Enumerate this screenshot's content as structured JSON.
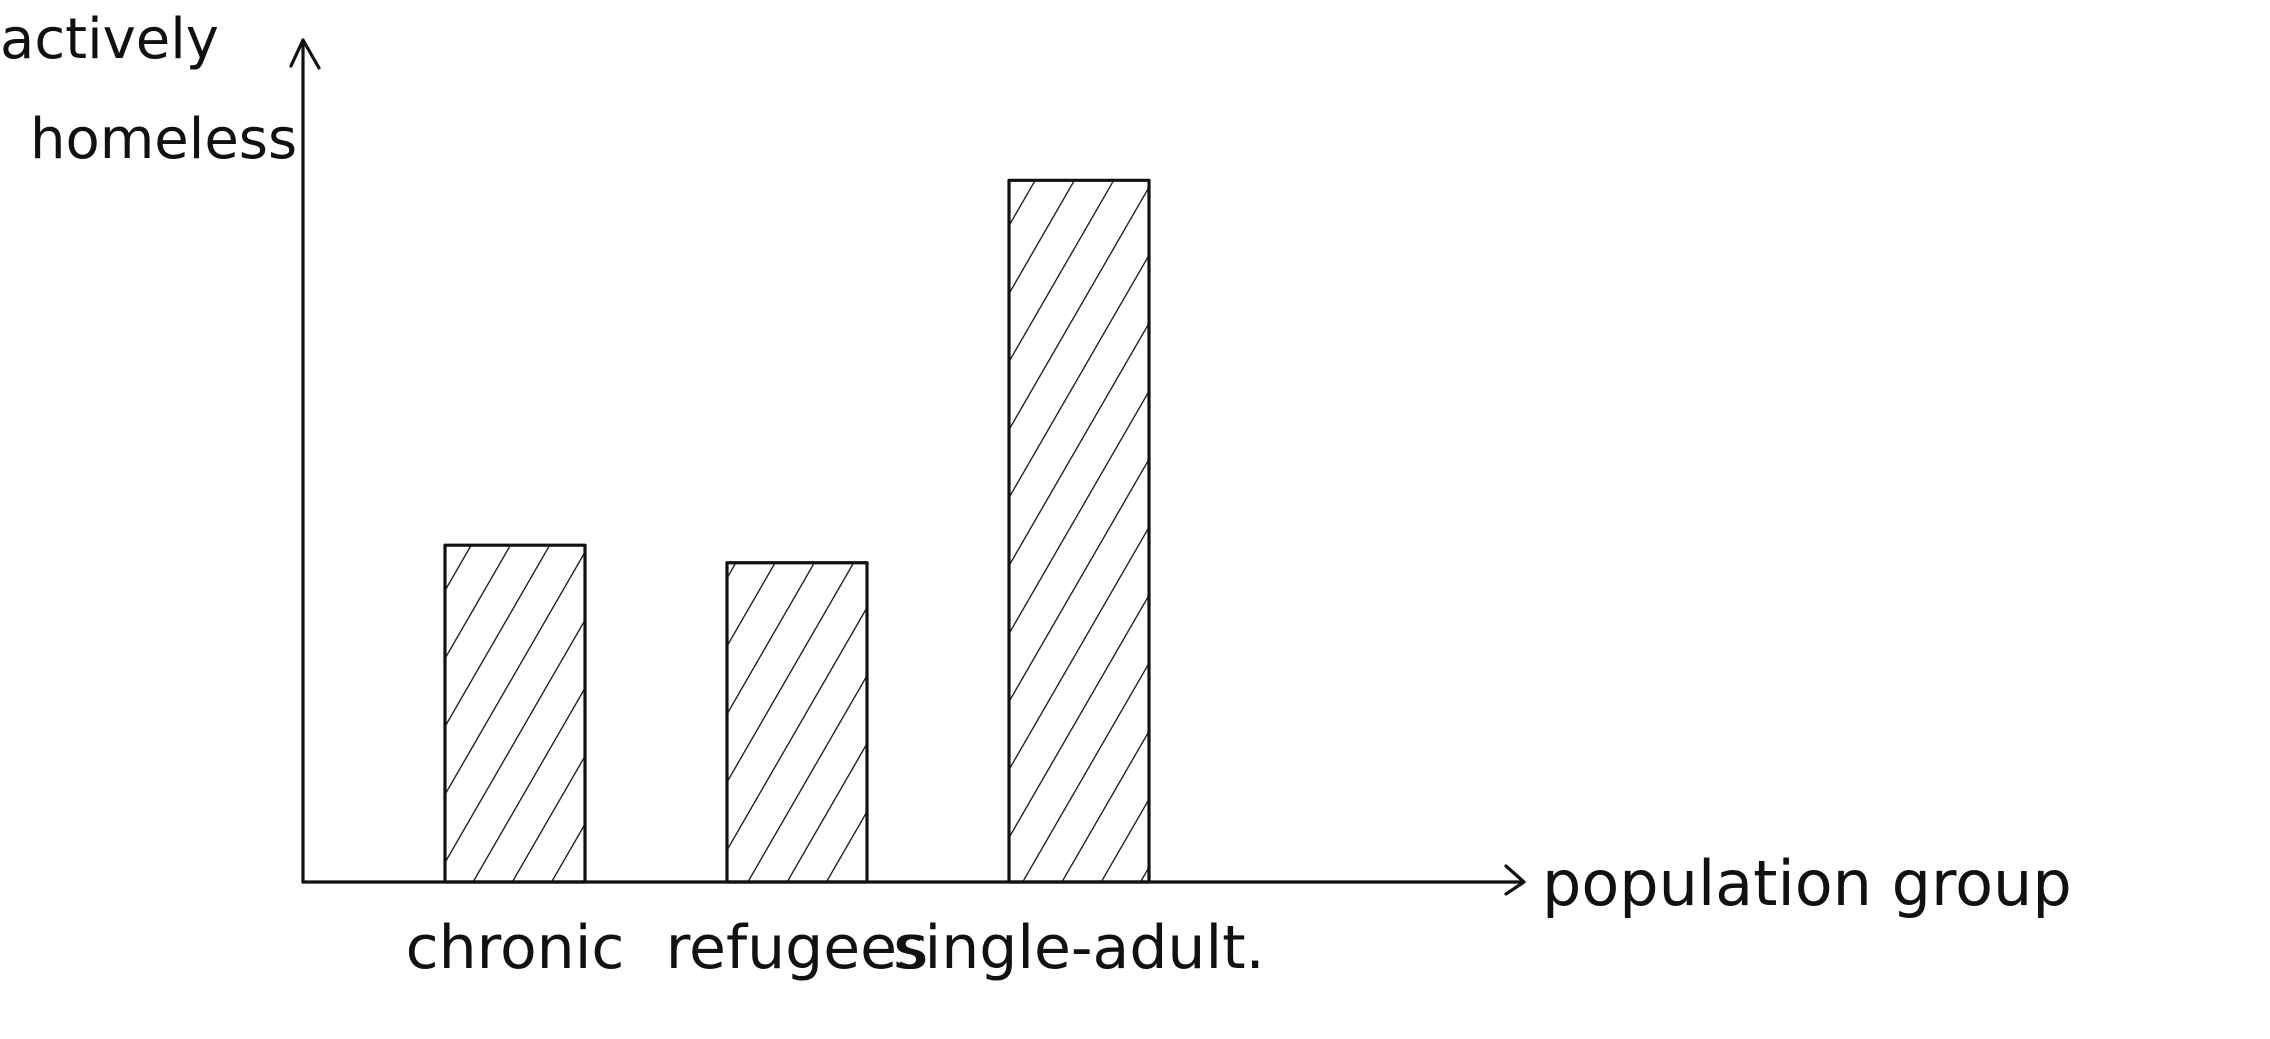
{
  "chart_data": {
    "type": "bar",
    "categories": [
      "chronic",
      "refugees",
      "single-adult."
    ],
    "values": [
      4.8,
      4.55,
      10.0
    ],
    "ylim": [
      0,
      12
    ],
    "ylabel_lines": [
      "actively",
      "homeless"
    ],
    "xlabel": "population group",
    "grid": false,
    "legend": "none",
    "bar_style": "hatched"
  },
  "colors": {
    "ink": "#111111",
    "background": "#ffffff"
  }
}
